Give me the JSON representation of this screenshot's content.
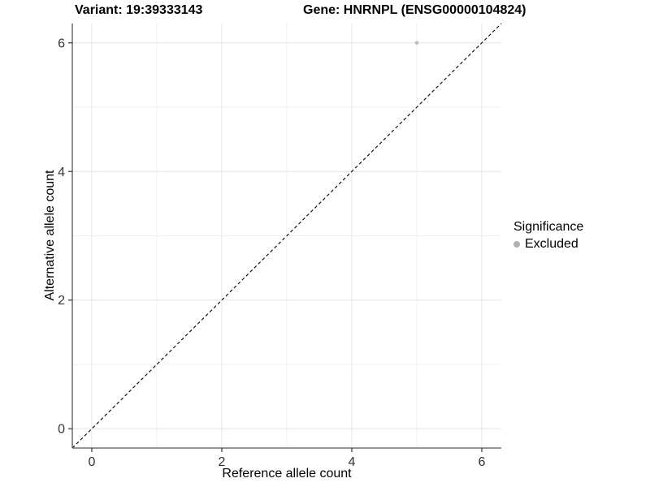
{
  "titles": {
    "variant": "Variant: 19:39333143",
    "gene": "Gene: HNRNPL (ENSG00000104824)"
  },
  "chart_data": {
    "type": "scatter",
    "title_left": "Variant: 19:39333143",
    "title_right": "Gene: HNRNPL (ENSG00000104824)",
    "xlabel": "Reference allele count",
    "ylabel": "Alternative allele count",
    "xlim": [
      -0.3,
      6.3
    ],
    "ylim": [
      -0.3,
      6.3
    ],
    "x_major_ticks": [
      0,
      2,
      4,
      6
    ],
    "y_major_ticks": [
      0,
      2,
      4,
      6
    ],
    "x_minor_ticks": [
      1,
      3,
      5
    ],
    "y_minor_ticks": [
      1,
      3,
      5
    ],
    "x_tick_labels": [
      "0",
      "2",
      "4",
      "6"
    ],
    "y_tick_labels": [
      "0",
      "2",
      "4",
      "6"
    ],
    "grid": true,
    "points": [
      {
        "x": 5,
        "y": 6,
        "series": "Excluded"
      }
    ],
    "reference_line": {
      "type": "identity",
      "style": "dashed",
      "color": "#000000"
    },
    "legend": {
      "title": "Significance",
      "position": "right",
      "items": [
        {
          "label": "Excluded",
          "color": "#b0b0b0"
        }
      ]
    },
    "colors": {
      "point": "#bdbdbd",
      "grid_major": "#e4e4e4",
      "grid_minor": "#efefef",
      "axis_line": "#555555",
      "tick_mark": "#333333",
      "tick_text": "#333333"
    }
  }
}
